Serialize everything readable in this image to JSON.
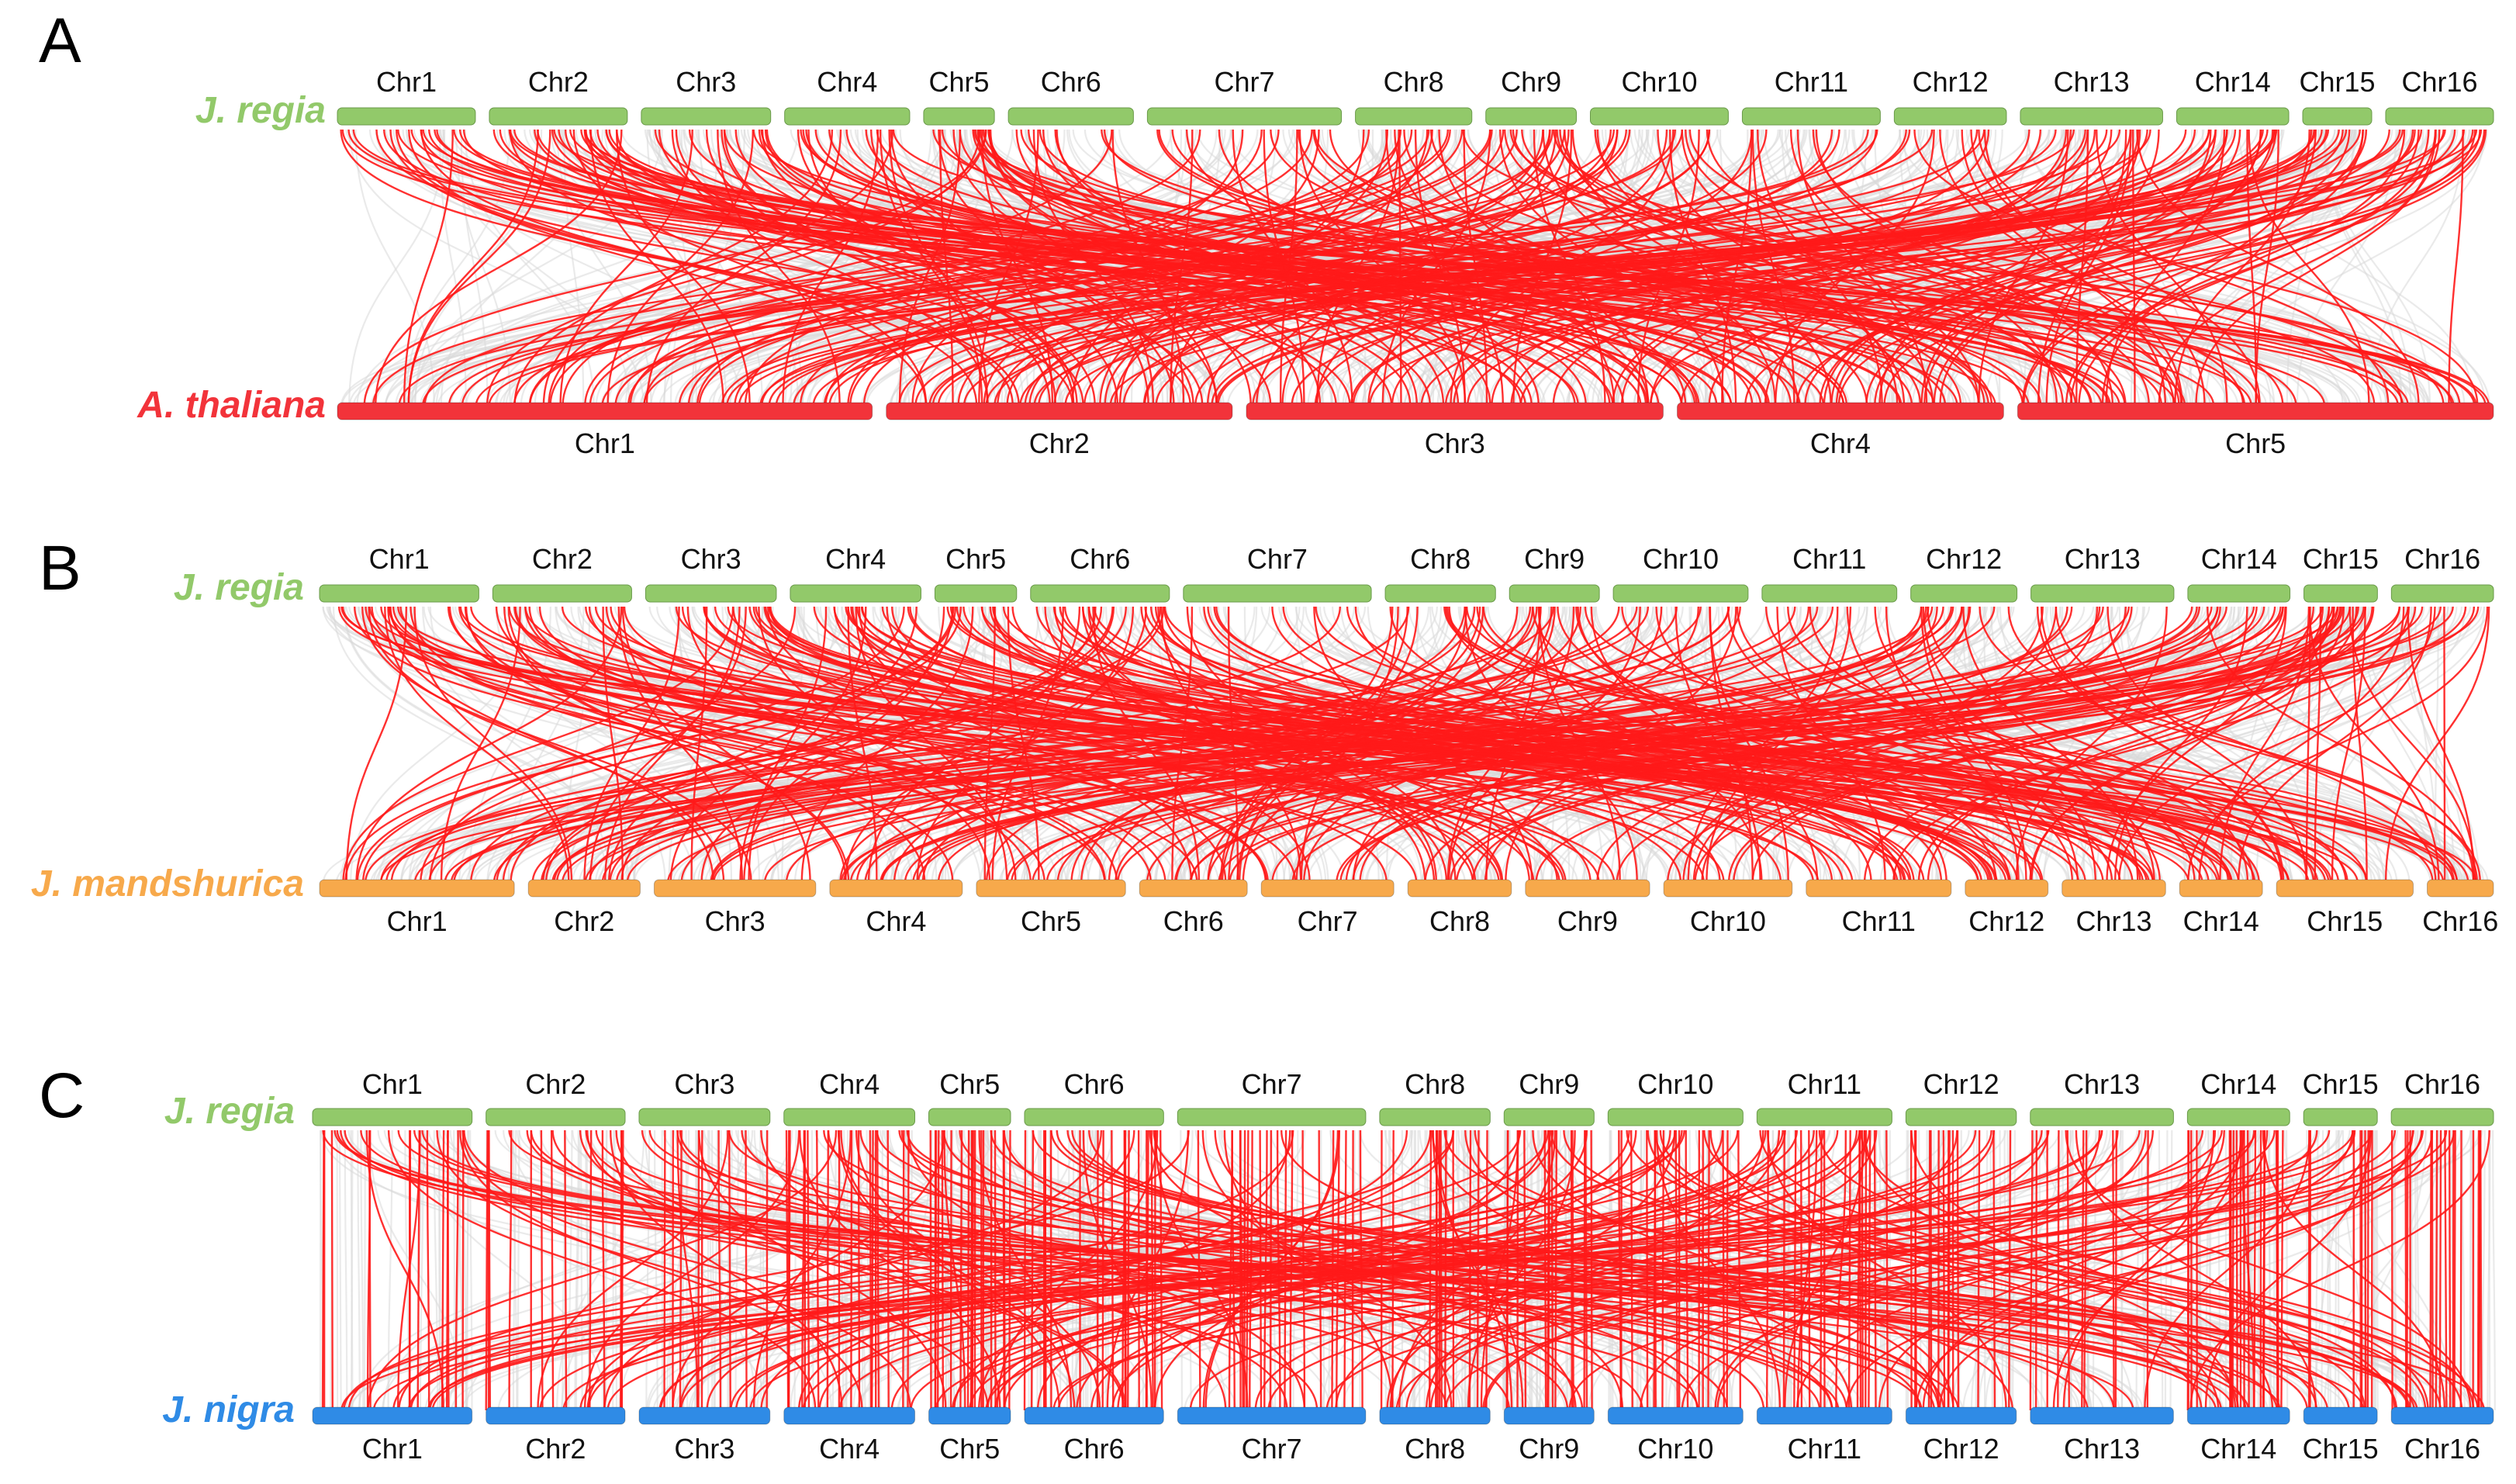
{
  "colors": {
    "jregia": "#92c96a",
    "athaliana": "#f2333a",
    "jmandshurica": "#f7a94b",
    "jnigra": "#2f8be6",
    "highlight": "#ff1a1a",
    "background_links": "#d9d9d9"
  },
  "panels": [
    {
      "letter": "A",
      "top": {
        "species": "J. regia",
        "color_key": "jregia",
        "chromosomes": [
          {
            "label": "Chr1",
            "length": 160
          },
          {
            "label": "Chr2",
            "length": 160
          },
          {
            "label": "Chr3",
            "length": 150
          },
          {
            "label": "Chr4",
            "length": 145
          },
          {
            "label": "Chr5",
            "length": 82
          },
          {
            "label": "Chr6",
            "length": 145
          },
          {
            "label": "Chr7",
            "length": 225
          },
          {
            "label": "Chr8",
            "length": 135
          },
          {
            "label": "Chr9",
            "length": 105
          },
          {
            "label": "Chr10",
            "length": 160
          },
          {
            "label": "Chr11",
            "length": 160
          },
          {
            "label": "Chr12",
            "length": 130
          },
          {
            "label": "Chr13",
            "length": 165
          },
          {
            "label": "Chr14",
            "length": 130
          },
          {
            "label": "Chr15",
            "length": 80
          },
          {
            "label": "Chr16",
            "length": 125
          }
        ]
      },
      "bottom": {
        "species": "A. thaliana",
        "color_key": "athaliana",
        "chromosomes": [
          {
            "label": "Chr1",
            "length": 680
          },
          {
            "label": "Chr2",
            "length": 440
          },
          {
            "label": "Chr3",
            "length": 530
          },
          {
            "label": "Chr4",
            "length": 415
          },
          {
            "label": "Chr5",
            "length": 605
          }
        ]
      }
    },
    {
      "letter": "B",
      "top": {
        "species": "J. regia",
        "color_key": "jregia",
        "chromosomes": [
          {
            "label": "Chr1",
            "length": 195
          },
          {
            "label": "Chr2",
            "length": 170
          },
          {
            "label": "Chr3",
            "length": 160
          },
          {
            "label": "Chr4",
            "length": 160
          },
          {
            "label": "Chr5",
            "length": 100
          },
          {
            "label": "Chr6",
            "length": 170
          },
          {
            "label": "Chr7",
            "length": 230
          },
          {
            "label": "Chr8",
            "length": 135
          },
          {
            "label": "Chr9",
            "length": 110
          },
          {
            "label": "Chr10",
            "length": 165
          },
          {
            "label": "Chr11",
            "length": 165
          },
          {
            "label": "Chr12",
            "length": 130
          },
          {
            "label": "Chr13",
            "length": 175
          },
          {
            "label": "Chr14",
            "length": 125
          },
          {
            "label": "Chr15",
            "length": 90
          },
          {
            "label": "Chr16",
            "length": 125
          }
        ]
      },
      "bottom": {
        "species": "J. mandshurica",
        "color_key": "jmandshurica",
        "chromosomes": [
          {
            "label": "Chr1",
            "length": 235
          },
          {
            "label": "Chr2",
            "length": 135
          },
          {
            "label": "Chr3",
            "length": 195
          },
          {
            "label": "Chr4",
            "length": 160
          },
          {
            "label": "Chr5",
            "length": 180
          },
          {
            "label": "Chr6",
            "length": 130
          },
          {
            "label": "Chr7",
            "length": 160
          },
          {
            "label": "Chr8",
            "length": 125
          },
          {
            "label": "Chr9",
            "length": 150
          },
          {
            "label": "Chr10",
            "length": 155
          },
          {
            "label": "Chr11",
            "length": 175
          },
          {
            "label": "Chr12",
            "length": 100
          },
          {
            "label": "Chr13",
            "length": 125
          },
          {
            "label": "Chr14",
            "length": 100
          },
          {
            "label": "Chr15",
            "length": 165
          },
          {
            "label": "Chr16",
            "length": 80
          }
        ]
      }
    },
    {
      "letter": "C",
      "top": {
        "species": "J. regia",
        "color_key": "jregia",
        "chromosomes": [
          {
            "label": "Chr1",
            "length": 195
          },
          {
            "label": "Chr2",
            "length": 170
          },
          {
            "label": "Chr3",
            "length": 160
          },
          {
            "label": "Chr4",
            "length": 160
          },
          {
            "label": "Chr5",
            "length": 100
          },
          {
            "label": "Chr6",
            "length": 170
          },
          {
            "label": "Chr7",
            "length": 230
          },
          {
            "label": "Chr8",
            "length": 135
          },
          {
            "label": "Chr9",
            "length": 110
          },
          {
            "label": "Chr10",
            "length": 165
          },
          {
            "label": "Chr11",
            "length": 165
          },
          {
            "label": "Chr12",
            "length": 135
          },
          {
            "label": "Chr13",
            "length": 175
          },
          {
            "label": "Chr14",
            "length": 125
          },
          {
            "label": "Chr15",
            "length": 90
          },
          {
            "label": "Chr16",
            "length": 125
          }
        ]
      },
      "bottom": {
        "species": "J. nigra",
        "color_key": "jnigra",
        "chromosomes": [
          {
            "label": "Chr1",
            "length": 195
          },
          {
            "label": "Chr2",
            "length": 170
          },
          {
            "label": "Chr3",
            "length": 160
          },
          {
            "label": "Chr4",
            "length": 160
          },
          {
            "label": "Chr5",
            "length": 100
          },
          {
            "label": "Chr6",
            "length": 170
          },
          {
            "label": "Chr7",
            "length": 230
          },
          {
            "label": "Chr8",
            "length": 135
          },
          {
            "label": "Chr9",
            "length": 110
          },
          {
            "label": "Chr10",
            "length": 165
          },
          {
            "label": "Chr11",
            "length": 165
          },
          {
            "label": "Chr12",
            "length": 135
          },
          {
            "label": "Chr13",
            "length": 175
          },
          {
            "label": "Chr14",
            "length": 125
          },
          {
            "label": "Chr15",
            "length": 90
          },
          {
            "label": "Chr16",
            "length": 125
          }
        ]
      }
    }
  ]
}
